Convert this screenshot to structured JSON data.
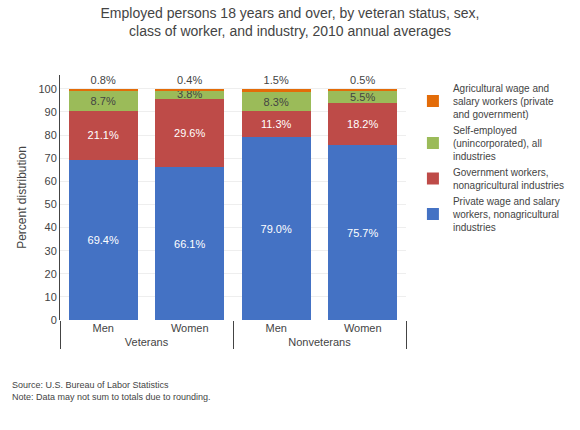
{
  "chart_data": {
    "type": "bar",
    "stacked": true,
    "title": "Employed persons 18 years and over, by veteran status, sex,\nclass of worker, and industry, 2010 annual averages",
    "categories": [
      "Men",
      "Women",
      "Men",
      "Women"
    ],
    "category_groups": [
      "Veterans",
      "Veterans",
      "Nonveterans",
      "Nonveterans"
    ],
    "ylabel": "Percent distribution",
    "ylim": [
      0,
      106
    ],
    "yticks": [
      0,
      10,
      20,
      30,
      40,
      50,
      60,
      70,
      80,
      90,
      100
    ],
    "grid": true,
    "legend": "right",
    "data_labels": true,
    "series": [
      {
        "name": "Private wage and salary\nworkers, nonagricultural\nindustries",
        "color": "#4472C4",
        "values": [
          69.4,
          66.1,
          79.0,
          75.7
        ],
        "value_labels": [
          "69.4%",
          "66.1%",
          "79.0%",
          "75.7%"
        ]
      },
      {
        "name": "Government workers,\nnonagricultural industries",
        "color": "#BE4B48",
        "values": [
          21.1,
          29.6,
          11.3,
          18.2
        ],
        "value_labels": [
          "21.1%",
          "29.6%",
          "11.3%",
          "18.2%"
        ]
      },
      {
        "name": "Self-employed\n(unincorporated), all\nindustries",
        "color": "#9BBB59",
        "values": [
          8.7,
          3.8,
          8.3,
          5.5
        ],
        "value_labels": [
          "8.7%",
          "3.8%",
          "8.3%",
          "5.5%"
        ]
      },
      {
        "name": "Agricultural wage and\nsalary workers (private\nand government)",
        "color": "#E36C09",
        "values": [
          0.8,
          0.4,
          1.5,
          0.5
        ],
        "value_labels": [
          "0.8%",
          "0.4%",
          "1.5%",
          "0.5%"
        ]
      }
    ],
    "footnote": "Source: U.S. Bureau of Labor Statistics\nNote: Data may not sum to totals due to rounding."
  }
}
